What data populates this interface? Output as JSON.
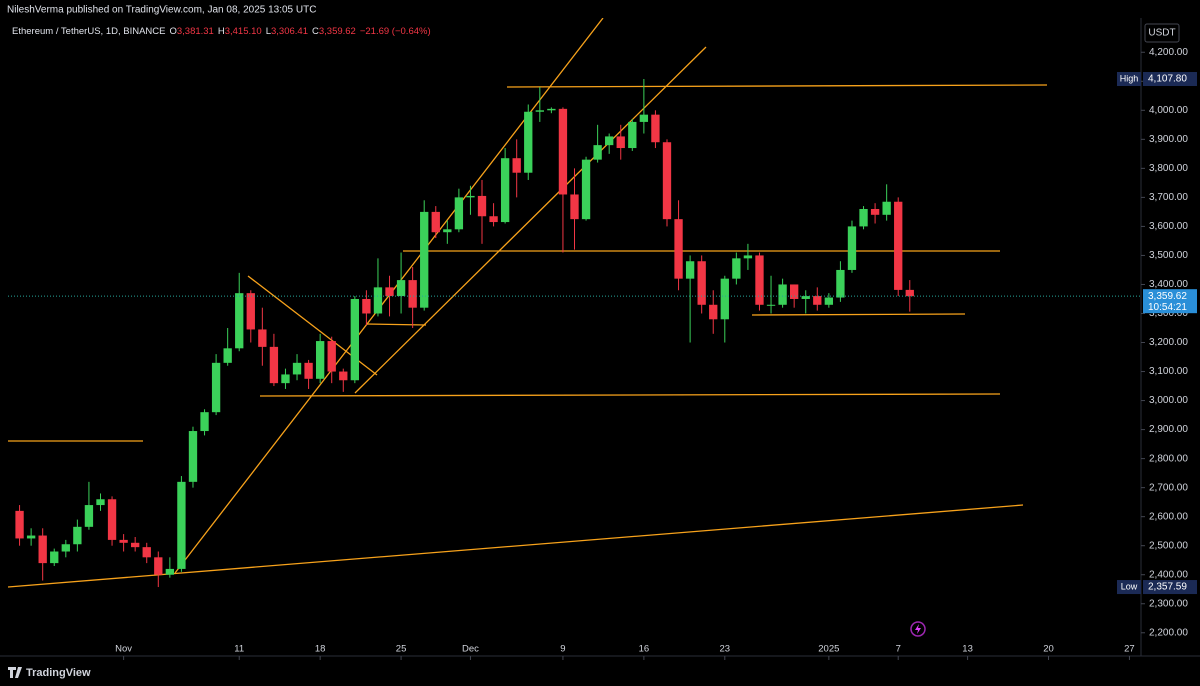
{
  "header": "NileshVerma published on TradingView.com, Jan 08, 2025 13:05 UTC",
  "footer": "TradingView",
  "chart_data": {
    "type": "candlestick",
    "symbol": "Ethereum / TetherUS, 1D, BINANCE",
    "ohlc": [
      [
        "O",
        "3,381.31"
      ],
      [
        "H",
        "3,415.10"
      ],
      [
        "L",
        "3,306.41"
      ],
      [
        "C",
        "3,359.62"
      ]
    ],
    "change": "−21.69 (−0.64%)",
    "currency": "USDT",
    "up_color": "#3bd15a",
    "down_color": "#f23645",
    "grid": false,
    "x": [
      "2024-10-23",
      "2024-10-24",
      "2024-10-25",
      "2024-10-26",
      "2024-10-27",
      "2024-10-28",
      "2024-10-29",
      "2024-10-30",
      "2024-10-31",
      "2024-11-01",
      "2024-11-02",
      "2024-11-03",
      "2024-11-04",
      "2024-11-05",
      "2024-11-06",
      "2024-11-07",
      "2024-11-08",
      "2024-11-09",
      "2024-11-10",
      "2024-11-11",
      "2024-11-12",
      "2024-11-13",
      "2024-11-14",
      "2024-11-15",
      "2024-11-16",
      "2024-11-17",
      "2024-11-18",
      "2024-11-19",
      "2024-11-20",
      "2024-11-21",
      "2024-11-22",
      "2024-11-23",
      "2024-11-24",
      "2024-11-25",
      "2024-11-26",
      "2024-11-27",
      "2024-11-28",
      "2024-11-29",
      "2024-11-30",
      "2024-12-01",
      "2024-12-02",
      "2024-12-03",
      "2024-12-04",
      "2024-12-05",
      "2024-12-06",
      "2024-12-07",
      "2024-12-08",
      "2024-12-09",
      "2024-12-10",
      "2024-12-11",
      "2024-12-12",
      "2024-12-13",
      "2024-12-14",
      "2024-12-15",
      "2024-12-16",
      "2024-12-17",
      "2024-12-18",
      "2024-12-19",
      "2024-12-20",
      "2024-12-21",
      "2024-12-22",
      "2024-12-23",
      "2024-12-24",
      "2024-12-25",
      "2024-12-26",
      "2024-12-27",
      "2024-12-28",
      "2024-12-29",
      "2024-12-30",
      "2024-12-31",
      "2025-01-01",
      "2025-01-02",
      "2025-01-03",
      "2025-01-04",
      "2025-01-05",
      "2025-01-06",
      "2025-01-07",
      "2025-01-08"
    ],
    "open": [
      2620,
      2525,
      2535,
      2440,
      2480,
      2505,
      2565,
      2640,
      2660,
      2520,
      2510,
      2495,
      2460,
      2400,
      2420,
      2720,
      2895,
      2960,
      3130,
      3180,
      3370,
      3245,
      3185,
      3060,
      3090,
      3130,
      3075,
      3205,
      3100,
      3070,
      3350,
      3300,
      3390,
      3360,
      3415,
      3320,
      3650,
      3580,
      3590,
      3700,
      3705,
      3635,
      3615,
      3835,
      3785,
      3995,
      4000,
      4005,
      3710,
      3625,
      3830,
      3880,
      3910,
      3870,
      3960,
      3985,
      3890,
      3625,
      3420,
      3480,
      3330,
      3280,
      3420,
      3490,
      3500,
      3330,
      3330,
      3400,
      3350,
      3360,
      3330,
      3355,
      3450,
      3600,
      3660,
      3640,
      3685,
      3381.31
    ],
    "high": [
      2640,
      2560,
      2560,
      2490,
      2520,
      2590,
      2720,
      2680,
      2670,
      2540,
      2530,
      2510,
      2480,
      2460,
      2740,
      2910,
      2970,
      3160,
      3250,
      3440,
      3380,
      3320,
      3230,
      3110,
      3160,
      3140,
      3230,
      3220,
      3110,
      3360,
      3380,
      3490,
      3430,
      3510,
      3460,
      3690,
      3670,
      3620,
      3730,
      3740,
      3760,
      3680,
      3870,
      3900,
      4020,
      4080,
      4010,
      4010,
      3800,
      3840,
      3950,
      3920,
      3950,
      3970,
      4107.8,
      4000,
      3900,
      3690,
      3500,
      3500,
      3380,
      3430,
      3510,
      3540,
      3510,
      3430,
      3420,
      3400,
      3380,
      3390,
      3370,
      3480,
      3620,
      3670,
      3680,
      3745,
      3700,
      3415.1
    ],
    "low": [
      2500,
      2500,
      2380,
      2430,
      2460,
      2480,
      2555,
      2620,
      2500,
      2480,
      2480,
      2440,
      2357.59,
      2390,
      2410,
      2700,
      2880,
      2950,
      3120,
      3170,
      3200,
      3120,
      3050,
      3040,
      3070,
      3040,
      3060,
      3060,
      3030,
      3060,
      3260,
      3290,
      3290,
      3300,
      3250,
      3310,
      3560,
      3540,
      3580,
      3640,
      3540,
      3600,
      3610,
      3700,
      3760,
      3960,
      3990,
      3510,
      3520,
      3620,
      3820,
      3850,
      3830,
      3860,
      3920,
      3870,
      3600,
      3380,
      3200,
      3300,
      3230,
      3200,
      3400,
      3450,
      3310,
      3300,
      3320,
      3320,
      3300,
      3310,
      3320,
      3340,
      3440,
      3590,
      3610,
      3620,
      3360,
      3306.41
    ],
    "close": [
      2525,
      2535,
      2440,
      2480,
      2505,
      2565,
      2640,
      2660,
      2520,
      2510,
      2495,
      2460,
      2400,
      2420,
      2720,
      2895,
      2960,
      3130,
      3180,
      3370,
      3245,
      3185,
      3060,
      3090,
      3130,
      3075,
      3205,
      3100,
      3070,
      3350,
      3300,
      3390,
      3360,
      3415,
      3320,
      3650,
      3580,
      3590,
      3700,
      3705,
      3635,
      3615,
      3835,
      3785,
      3995,
      4000,
      4005,
      3710,
      3625,
      3830,
      3880,
      3910,
      3870,
      3960,
      3985,
      3890,
      3625,
      3420,
      3480,
      3330,
      3280,
      3420,
      3490,
      3500,
      3330,
      3330,
      3400,
      3350,
      3360,
      3330,
      3355,
      3450,
      3600,
      3660,
      3640,
      3685,
      3381.31,
      3359.62
    ],
    "xlim": [
      "2024-10-22",
      "2025-01-28"
    ],
    "xticks": [
      {
        "value": "2024-11-01",
        "label": "Nov"
      },
      {
        "value": "2024-11-11",
        "label": "11"
      },
      {
        "value": "2024-11-18",
        "label": "18"
      },
      {
        "value": "2024-11-25",
        "label": "25"
      },
      {
        "value": "2024-12-01",
        "label": "Dec"
      },
      {
        "value": "2024-12-09",
        "label": "9"
      },
      {
        "value": "2024-12-16",
        "label": "16"
      },
      {
        "value": "2024-12-23",
        "label": "23"
      },
      {
        "value": "2025-01-01",
        "label": "2025"
      },
      {
        "value": "2025-01-07",
        "label": "7"
      },
      {
        "value": "2025-01-13",
        "label": "13"
      },
      {
        "value": "2025-01-20",
        "label": "20"
      },
      {
        "value": "2025-01-27",
        "label": "27"
      }
    ],
    "ylim": [
      2120,
      4318
    ],
    "yticks": [
      {
        "value": 2200,
        "label": "2,200.00"
      },
      {
        "value": 2300,
        "label": "2,300.00"
      },
      {
        "value": 2400,
        "label": "2,400.00"
      },
      {
        "value": 2500,
        "label": "2,500.00"
      },
      {
        "value": 2600,
        "label": "2,600.00"
      },
      {
        "value": 2700,
        "label": "2,700.00"
      },
      {
        "value": 2800,
        "label": "2,800.00"
      },
      {
        "value": 2900,
        "label": "2,900.00"
      },
      {
        "value": 3000,
        "label": "3,000.00"
      },
      {
        "value": 3100,
        "label": "3,100.00"
      },
      {
        "value": 3200,
        "label": "3,200.00"
      },
      {
        "value": 3300,
        "label": "3,300.00"
      },
      {
        "value": 3400,
        "label": "3,400.00"
      },
      {
        "value": 3500,
        "label": "3,500.00"
      },
      {
        "value": 3600,
        "label": "3,600.00"
      },
      {
        "value": 3700,
        "label": "3,700.00"
      },
      {
        "value": 3800,
        "label": "3,800.00"
      },
      {
        "value": 3900,
        "label": "3,900.00"
      },
      {
        "value": 4000,
        "label": "4,000.00"
      },
      {
        "value": 4100,
        "label": "4,100.00"
      },
      {
        "value": 4200,
        "label": "4,200.00"
      }
    ],
    "price_labels": [
      {
        "name": "High",
        "value": 4107.8,
        "label": "4,107.80"
      },
      {
        "name": "Low",
        "value": 2357.59,
        "label": "2,357.59"
      }
    ],
    "last_price": {
      "value": 3359.62,
      "label": "3,359.62"
    },
    "countdown": "10:54:21"
  }
}
